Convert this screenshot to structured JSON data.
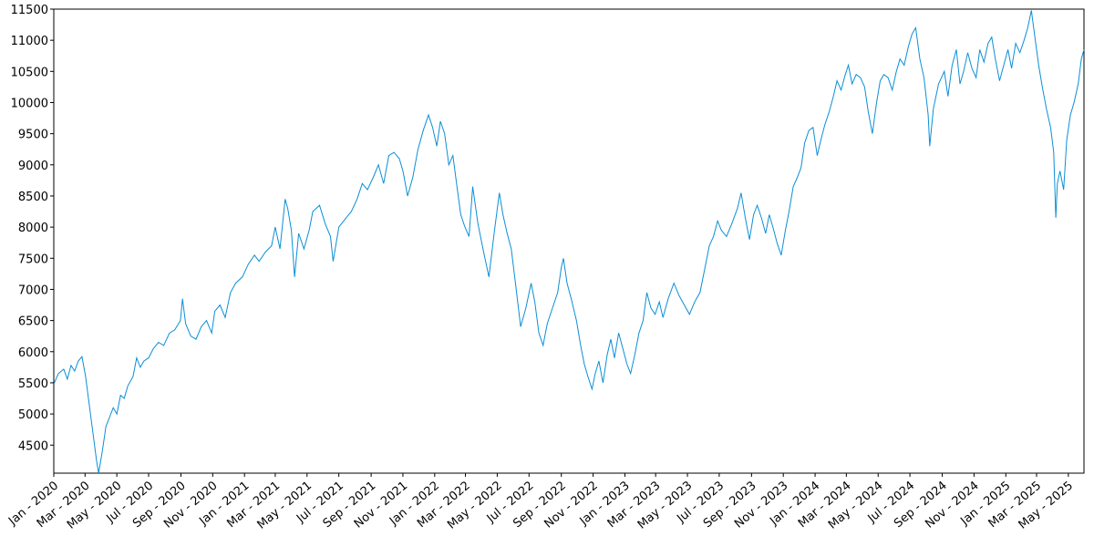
{
  "chart_data": {
    "type": "line",
    "title": "",
    "xlabel": "",
    "ylabel": "",
    "xlim": [
      "2020-01-01",
      "2025-05-31"
    ],
    "ylim": [
      4050,
      11500
    ],
    "grid": false,
    "line_color": "#0b8fd6",
    "y_ticks": [
      4500,
      5000,
      5500,
      6000,
      6500,
      7000,
      7500,
      8000,
      8500,
      9000,
      9500,
      10000,
      10500,
      11000,
      11500
    ],
    "x_ticks": [
      {
        "date": "2020-01-01",
        "label": "Jan - 2020"
      },
      {
        "date": "2020-03-01",
        "label": "Mar - 2020"
      },
      {
        "date": "2020-05-01",
        "label": "May - 2020"
      },
      {
        "date": "2020-07-01",
        "label": "Jul - 2020"
      },
      {
        "date": "2020-09-01",
        "label": "Sep - 2020"
      },
      {
        "date": "2020-11-01",
        "label": "Nov - 2020"
      },
      {
        "date": "2021-01-01",
        "label": "Jan - 2021"
      },
      {
        "date": "2021-03-01",
        "label": "Mar - 2021"
      },
      {
        "date": "2021-05-01",
        "label": "May - 2021"
      },
      {
        "date": "2021-07-01",
        "label": "Jul - 2021"
      },
      {
        "date": "2021-09-01",
        "label": "Sep - 2021"
      },
      {
        "date": "2021-11-01",
        "label": "Nov - 2021"
      },
      {
        "date": "2022-01-01",
        "label": "Jan - 2022"
      },
      {
        "date": "2022-03-01",
        "label": "Mar - 2022"
      },
      {
        "date": "2022-05-01",
        "label": "May - 2022"
      },
      {
        "date": "2022-07-01",
        "label": "Jul - 2022"
      },
      {
        "date": "2022-09-01",
        "label": "Sep - 2022"
      },
      {
        "date": "2022-11-01",
        "label": "Nov - 2022"
      },
      {
        "date": "2023-01-01",
        "label": "Jan - 2023"
      },
      {
        "date": "2023-03-01",
        "label": "Mar - 2023"
      },
      {
        "date": "2023-05-01",
        "label": "May - 2023"
      },
      {
        "date": "2023-07-01",
        "label": "Jul - 2023"
      },
      {
        "date": "2023-09-01",
        "label": "Sep - 2023"
      },
      {
        "date": "2023-11-01",
        "label": "Nov - 2023"
      },
      {
        "date": "2024-01-01",
        "label": "Jan - 2024"
      },
      {
        "date": "2024-03-01",
        "label": "Mar - 2024"
      },
      {
        "date": "2024-05-01",
        "label": "May - 2024"
      },
      {
        "date": "2024-07-01",
        "label": "Jul - 2024"
      },
      {
        "date": "2024-09-01",
        "label": "Sep - 2024"
      },
      {
        "date": "2024-11-01",
        "label": "Nov - 2024"
      },
      {
        "date": "2025-01-01",
        "label": "Jan - 2025"
      },
      {
        "date": "2025-03-01",
        "label": "Mar - 2025"
      },
      {
        "date": "2025-05-01",
        "label": "May - 2025"
      }
    ],
    "series": [
      {
        "points": [
          [
            "2020-01-02",
            5500
          ],
          [
            "2020-01-10",
            5650
          ],
          [
            "2020-01-20",
            5720
          ],
          [
            "2020-01-27",
            5560
          ],
          [
            "2020-02-03",
            5780
          ],
          [
            "2020-02-10",
            5690
          ],
          [
            "2020-02-17",
            5850
          ],
          [
            "2020-02-24",
            5920
          ],
          [
            "2020-03-02",
            5600
          ],
          [
            "2020-03-09",
            5150
          ],
          [
            "2020-03-16",
            4700
          ],
          [
            "2020-03-23",
            4250
          ],
          [
            "2020-03-27",
            4050
          ],
          [
            "2020-04-03",
            4400
          ],
          [
            "2020-04-10",
            4800
          ],
          [
            "2020-04-17",
            4950
          ],
          [
            "2020-04-24",
            5100
          ],
          [
            "2020-05-01",
            5000
          ],
          [
            "2020-05-08",
            5300
          ],
          [
            "2020-05-15",
            5250
          ],
          [
            "2020-05-22",
            5450
          ],
          [
            "2020-06-01",
            5600
          ],
          [
            "2020-06-08",
            5900
          ],
          [
            "2020-06-15",
            5750
          ],
          [
            "2020-06-22",
            5850
          ],
          [
            "2020-07-01",
            5900
          ],
          [
            "2020-07-10",
            6050
          ],
          [
            "2020-07-20",
            6150
          ],
          [
            "2020-07-30",
            6100
          ],
          [
            "2020-08-10",
            6300
          ],
          [
            "2020-08-20",
            6350
          ],
          [
            "2020-08-31",
            6500
          ],
          [
            "2020-09-04",
            6850
          ],
          [
            "2020-09-10",
            6450
          ],
          [
            "2020-09-20",
            6250
          ],
          [
            "2020-09-30",
            6200
          ],
          [
            "2020-10-10",
            6400
          ],
          [
            "2020-10-20",
            6500
          ],
          [
            "2020-10-30",
            6300
          ],
          [
            "2020-11-05",
            6650
          ],
          [
            "2020-11-15",
            6750
          ],
          [
            "2020-11-25",
            6550
          ],
          [
            "2020-12-05",
            6950
          ],
          [
            "2020-12-15",
            7100
          ],
          [
            "2020-12-28",
            7200
          ],
          [
            "2021-01-08",
            7400
          ],
          [
            "2021-01-20",
            7550
          ],
          [
            "2021-01-29",
            7450
          ],
          [
            "2021-02-10",
            7600
          ],
          [
            "2021-02-22",
            7700
          ],
          [
            "2021-03-01",
            8000
          ],
          [
            "2021-03-10",
            7650
          ],
          [
            "2021-03-20",
            8450
          ],
          [
            "2021-03-25",
            8300
          ],
          [
            "2021-04-01",
            7950
          ],
          [
            "2021-04-07",
            7200
          ],
          [
            "2021-04-15",
            7900
          ],
          [
            "2021-04-25",
            7650
          ],
          [
            "2021-05-05",
            7950
          ],
          [
            "2021-05-12",
            8250
          ],
          [
            "2021-05-25",
            8350
          ],
          [
            "2021-06-05",
            8050
          ],
          [
            "2021-06-15",
            7850
          ],
          [
            "2021-06-20",
            7450
          ],
          [
            "2021-07-01",
            8000
          ],
          [
            "2021-07-15",
            8150
          ],
          [
            "2021-07-25",
            8250
          ],
          [
            "2021-08-05",
            8450
          ],
          [
            "2021-08-15",
            8700
          ],
          [
            "2021-08-25",
            8600
          ],
          [
            "2021-09-05",
            8800
          ],
          [
            "2021-09-15",
            9000
          ],
          [
            "2021-09-25",
            8700
          ],
          [
            "2021-10-05",
            9150
          ],
          [
            "2021-10-15",
            9200
          ],
          [
            "2021-10-25",
            9100
          ],
          [
            "2021-11-01",
            8900
          ],
          [
            "2021-11-10",
            8500
          ],
          [
            "2021-11-20",
            8800
          ],
          [
            "2021-11-30",
            9250
          ],
          [
            "2021-12-10",
            9550
          ],
          [
            "2021-12-20",
            9800
          ],
          [
            "2021-12-28",
            9600
          ],
          [
            "2022-01-05",
            9300
          ],
          [
            "2022-01-12",
            9700
          ],
          [
            "2022-01-20",
            9500
          ],
          [
            "2022-01-28",
            9000
          ],
          [
            "2022-02-05",
            9150
          ],
          [
            "2022-02-12",
            8700
          ],
          [
            "2022-02-20",
            8200
          ],
          [
            "2022-02-28",
            8000
          ],
          [
            "2022-03-08",
            7850
          ],
          [
            "2022-03-15",
            8650
          ],
          [
            "2022-03-25",
            8050
          ],
          [
            "2022-04-05",
            7600
          ],
          [
            "2022-04-15",
            7200
          ],
          [
            "2022-04-25",
            7900
          ],
          [
            "2022-05-05",
            8550
          ],
          [
            "2022-05-12",
            8200
          ],
          [
            "2022-05-20",
            7900
          ],
          [
            "2022-05-28",
            7650
          ],
          [
            "2022-06-05",
            7100
          ],
          [
            "2022-06-15",
            6400
          ],
          [
            "2022-06-25",
            6700
          ],
          [
            "2022-07-05",
            7100
          ],
          [
            "2022-07-12",
            6800
          ],
          [
            "2022-07-20",
            6300
          ],
          [
            "2022-07-28",
            6100
          ],
          [
            "2022-08-05",
            6450
          ],
          [
            "2022-08-15",
            6700
          ],
          [
            "2022-08-25",
            6950
          ],
          [
            "2022-09-01",
            7350
          ],
          [
            "2022-09-05",
            7500
          ],
          [
            "2022-09-12",
            7100
          ],
          [
            "2022-09-20",
            6850
          ],
          [
            "2022-09-30",
            6500
          ],
          [
            "2022-10-08",
            6100
          ],
          [
            "2022-10-15",
            5800
          ],
          [
            "2022-10-22",
            5600
          ],
          [
            "2022-10-30",
            5400
          ],
          [
            "2022-11-05",
            5650
          ],
          [
            "2022-11-12",
            5850
          ],
          [
            "2022-11-20",
            5500
          ],
          [
            "2022-11-28",
            5950
          ],
          [
            "2022-12-05",
            6200
          ],
          [
            "2022-12-12",
            5900
          ],
          [
            "2022-12-20",
            6300
          ],
          [
            "2022-12-28",
            6050
          ],
          [
            "2023-01-05",
            5800
          ],
          [
            "2023-01-12",
            5650
          ],
          [
            "2023-01-20",
            5950
          ],
          [
            "2023-01-28",
            6300
          ],
          [
            "2023-02-05",
            6500
          ],
          [
            "2023-02-12",
            6950
          ],
          [
            "2023-02-20",
            6700
          ],
          [
            "2023-02-28",
            6600
          ],
          [
            "2023-03-08",
            6800
          ],
          [
            "2023-03-15",
            6550
          ],
          [
            "2023-03-25",
            6850
          ],
          [
            "2023-04-05",
            7100
          ],
          [
            "2023-04-15",
            6900
          ],
          [
            "2023-04-25",
            6750
          ],
          [
            "2023-05-05",
            6600
          ],
          [
            "2023-05-15",
            6800
          ],
          [
            "2023-05-25",
            6950
          ],
          [
            "2023-06-05",
            7400
          ],
          [
            "2023-06-12",
            7700
          ],
          [
            "2023-06-20",
            7850
          ],
          [
            "2023-06-28",
            8100
          ],
          [
            "2023-07-05",
            7950
          ],
          [
            "2023-07-15",
            7850
          ],
          [
            "2023-07-25",
            8050
          ],
          [
            "2023-08-05",
            8300
          ],
          [
            "2023-08-12",
            8550
          ],
          [
            "2023-08-20",
            8150
          ],
          [
            "2023-08-28",
            7800
          ],
          [
            "2023-09-05",
            8200
          ],
          [
            "2023-09-12",
            8350
          ],
          [
            "2023-09-20",
            8150
          ],
          [
            "2023-09-28",
            7900
          ],
          [
            "2023-10-05",
            8200
          ],
          [
            "2023-10-12",
            8000
          ],
          [
            "2023-10-20",
            7750
          ],
          [
            "2023-10-28",
            7550
          ],
          [
            "2023-11-05",
            7950
          ],
          [
            "2023-11-12",
            8250
          ],
          [
            "2023-11-20",
            8650
          ],
          [
            "2023-11-28",
            8800
          ],
          [
            "2023-12-05",
            8950
          ],
          [
            "2023-12-12",
            9350
          ],
          [
            "2023-12-20",
            9550
          ],
          [
            "2023-12-28",
            9600
          ],
          [
            "2024-01-05",
            9150
          ],
          [
            "2024-01-12",
            9400
          ],
          [
            "2024-01-20",
            9650
          ],
          [
            "2024-01-28",
            9850
          ],
          [
            "2024-02-05",
            10100
          ],
          [
            "2024-02-12",
            10350
          ],
          [
            "2024-02-20",
            10200
          ],
          [
            "2024-02-28",
            10450
          ],
          [
            "2024-03-05",
            10600
          ],
          [
            "2024-03-12",
            10300
          ],
          [
            "2024-03-20",
            10450
          ],
          [
            "2024-03-28",
            10400
          ],
          [
            "2024-04-05",
            10250
          ],
          [
            "2024-04-12",
            9850
          ],
          [
            "2024-04-20",
            9500
          ],
          [
            "2024-04-28",
            10000
          ],
          [
            "2024-05-05",
            10350
          ],
          [
            "2024-05-12",
            10450
          ],
          [
            "2024-05-20",
            10400
          ],
          [
            "2024-05-28",
            10200
          ],
          [
            "2024-06-05",
            10500
          ],
          [
            "2024-06-12",
            10700
          ],
          [
            "2024-06-20",
            10600
          ],
          [
            "2024-06-28",
            10900
          ],
          [
            "2024-07-05",
            11100
          ],
          [
            "2024-07-12",
            11200
          ],
          [
            "2024-07-20",
            10700
          ],
          [
            "2024-07-28",
            10400
          ],
          [
            "2024-08-05",
            9800
          ],
          [
            "2024-08-08",
            9300
          ],
          [
            "2024-08-15",
            9900
          ],
          [
            "2024-08-25",
            10300
          ],
          [
            "2024-09-05",
            10500
          ],
          [
            "2024-09-12",
            10100
          ],
          [
            "2024-09-20",
            10600
          ],
          [
            "2024-09-28",
            10850
          ],
          [
            "2024-10-05",
            10300
          ],
          [
            "2024-10-12",
            10500
          ],
          [
            "2024-10-20",
            10800
          ],
          [
            "2024-10-28",
            10550
          ],
          [
            "2024-11-05",
            10400
          ],
          [
            "2024-11-12",
            10850
          ],
          [
            "2024-11-20",
            10650
          ],
          [
            "2024-11-28",
            10950
          ],
          [
            "2024-12-05",
            11050
          ],
          [
            "2024-12-12",
            10700
          ],
          [
            "2024-12-20",
            10350
          ],
          [
            "2024-12-28",
            10600
          ],
          [
            "2025-01-05",
            10850
          ],
          [
            "2025-01-12",
            10550
          ],
          [
            "2025-01-20",
            10950
          ],
          [
            "2025-01-28",
            10800
          ],
          [
            "2025-02-05",
            11000
          ],
          [
            "2025-02-12",
            11200
          ],
          [
            "2025-02-19",
            11480
          ],
          [
            "2025-02-25",
            11100
          ],
          [
            "2025-03-05",
            10600
          ],
          [
            "2025-03-12",
            10250
          ],
          [
            "2025-03-20",
            9900
          ],
          [
            "2025-03-28",
            9600
          ],
          [
            "2025-04-03",
            9200
          ],
          [
            "2025-04-07",
            8150
          ],
          [
            "2025-04-10",
            8700
          ],
          [
            "2025-04-15",
            8900
          ],
          [
            "2025-04-22",
            8600
          ],
          [
            "2025-04-28",
            9400
          ],
          [
            "2025-05-05",
            9800
          ],
          [
            "2025-05-12",
            10000
          ],
          [
            "2025-05-20",
            10300
          ],
          [
            "2025-05-26",
            10700
          ],
          [
            "2025-05-31",
            10850
          ]
        ]
      }
    ]
  }
}
